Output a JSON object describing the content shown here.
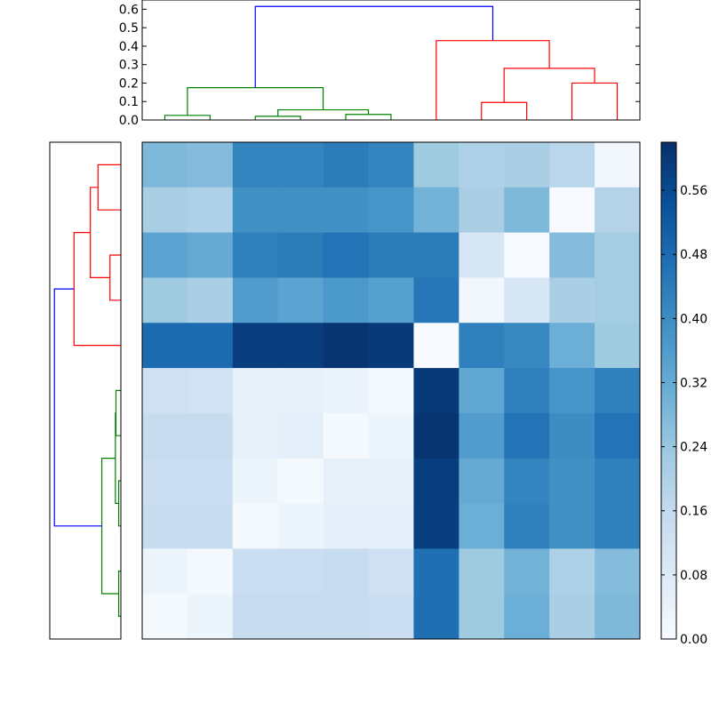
{
  "chart_data": [
    {
      "type": "dendrogram",
      "orientation": "top",
      "yaxis": {
        "range": [
          0,
          0.65
        ],
        "ticks": [
          0,
          0.1,
          0.2,
          0.3,
          0.4,
          0.5,
          0.6
        ],
        "tick_labels": [
          "0.0",
          "0.1",
          "0.2",
          "0.3",
          "0.4",
          "0.5",
          "0.6"
        ]
      },
      "leaf_count": 11,
      "links": [
        {
          "color": "#008000",
          "left": 0,
          "right": 1,
          "left_h": 0,
          "right_h": 0,
          "height": 0.025
        },
        {
          "color": "#008000",
          "left": 2,
          "right": 3,
          "left_h": 0,
          "right_h": 0,
          "height": 0.02
        },
        {
          "color": "#008000",
          "left": 4,
          "right": 5,
          "left_h": 0,
          "right_h": 0,
          "height": 0.03
        },
        {
          "color": "#008000",
          "left": 2.5,
          "right": 4.5,
          "left_h": 0.02,
          "right_h": 0.03,
          "height": 0.055
        },
        {
          "color": "#008000",
          "left": 0.5,
          "right": 3.5,
          "left_h": 0.025,
          "right_h": 0.055,
          "height": 0.175
        },
        {
          "color": "#ff0000",
          "left": 7,
          "right": 8,
          "left_h": 0,
          "right_h": 0,
          "height": 0.095
        },
        {
          "color": "#ff0000",
          "left": 9,
          "right": 10,
          "left_h": 0,
          "right_h": 0,
          "height": 0.2
        },
        {
          "color": "#ff0000",
          "left": 7.5,
          "right": 9.5,
          "left_h": 0.095,
          "right_h": 0.2,
          "height": 0.28
        },
        {
          "color": "#ff0000",
          "left": 6,
          "right": 8.5,
          "left_h": 0,
          "right_h": 0.28,
          "height": 0.43
        },
        {
          "color": "#0000ff",
          "left": 2,
          "right": 7.25,
          "left_h": 0.175,
          "right_h": 0.43,
          "height": 0.615
        }
      ]
    },
    {
      "type": "dendrogram",
      "orientation": "left",
      "height_range": [
        0,
        0.62
      ],
      "leaf_count": 11,
      "links": [
        {
          "color": "#ff0000",
          "left": 0,
          "right": 1,
          "left_h": 0,
          "right_h": 0,
          "height": 0.21
        },
        {
          "color": "#ff0000",
          "left": 2,
          "right": 3,
          "left_h": 0,
          "right_h": 0,
          "height": 0.1
        },
        {
          "color": "#ff0000",
          "left": 0.5,
          "right": 2.5,
          "left_h": 0.21,
          "right_h": 0.1,
          "height": 0.28
        },
        {
          "color": "#ff0000",
          "left": 1.5,
          "right": 4,
          "left_h": 0.28,
          "right_h": 0,
          "height": 0.43
        },
        {
          "color": "#008000",
          "left": 5,
          "right": 6,
          "left_h": 0,
          "right_h": 0,
          "height": 0.045
        },
        {
          "color": "#008000",
          "left": 7,
          "right": 8,
          "left_h": 0,
          "right_h": 0,
          "height": 0.02
        },
        {
          "color": "#008000",
          "left": 5.5,
          "right": 7.5,
          "left_h": 0.045,
          "right_h": 0.02,
          "height": 0.05
        },
        {
          "color": "#008000",
          "left": 9,
          "right": 10,
          "left_h": 0,
          "right_h": 0,
          "height": 0.02
        },
        {
          "color": "#008000",
          "left": 6.5,
          "right": 9.5,
          "left_h": 0.05,
          "right_h": 0.02,
          "height": 0.175
        },
        {
          "color": "#0000ff",
          "left": 2.75,
          "right": 8,
          "left_h": 0.43,
          "right_h": 0.175,
          "height": 0.61
        }
      ]
    },
    {
      "type": "heatmap",
      "rows": 11,
      "cols": 11,
      "values": [
        [
          0.28,
          0.27,
          0.42,
          0.42,
          0.44,
          0.42,
          0.23,
          0.2,
          0.21,
          0.18,
          0.02
        ],
        [
          0.21,
          0.2,
          0.39,
          0.39,
          0.39,
          0.38,
          0.3,
          0.21,
          0.28,
          0.0,
          0.19
        ],
        [
          0.34,
          0.32,
          0.43,
          0.44,
          0.46,
          0.44,
          0.44,
          0.1,
          0.0,
          0.27,
          0.22
        ],
        [
          0.23,
          0.21,
          0.36,
          0.34,
          0.37,
          0.35,
          0.45,
          0.02,
          0.1,
          0.21,
          0.22
        ],
        [
          0.48,
          0.48,
          0.59,
          0.59,
          0.61,
          0.6,
          0.0,
          0.43,
          0.41,
          0.31,
          0.23
        ],
        [
          0.13,
          0.12,
          0.05,
          0.05,
          0.04,
          0.01,
          0.6,
          0.33,
          0.43,
          0.38,
          0.43
        ],
        [
          0.15,
          0.15,
          0.05,
          0.06,
          0.01,
          0.03,
          0.61,
          0.36,
          0.46,
          0.4,
          0.46
        ],
        [
          0.14,
          0.14,
          0.03,
          0.01,
          0.05,
          0.05,
          0.59,
          0.32,
          0.42,
          0.39,
          0.43
        ],
        [
          0.15,
          0.15,
          0.01,
          0.03,
          0.06,
          0.06,
          0.59,
          0.31,
          0.43,
          0.39,
          0.43
        ],
        [
          0.03,
          0.01,
          0.14,
          0.14,
          0.15,
          0.13,
          0.47,
          0.23,
          0.3,
          0.2,
          0.27
        ],
        [
          0.01,
          0.03,
          0.15,
          0.15,
          0.15,
          0.14,
          0.47,
          0.23,
          0.31,
          0.21,
          0.28
        ]
      ],
      "colorscale": "Blues",
      "vmin": 0,
      "vmax": 0.62
    },
    {
      "type": "colorbar",
      "range": [
        0,
        0.62
      ],
      "ticks": [
        0,
        0.08,
        0.16,
        0.24,
        0.32,
        0.4,
        0.48,
        0.56
      ],
      "tick_labels": [
        "0.00",
        "0.08",
        "0.16",
        "0.24",
        "0.32",
        "0.40",
        "0.48",
        "0.56"
      ]
    }
  ]
}
